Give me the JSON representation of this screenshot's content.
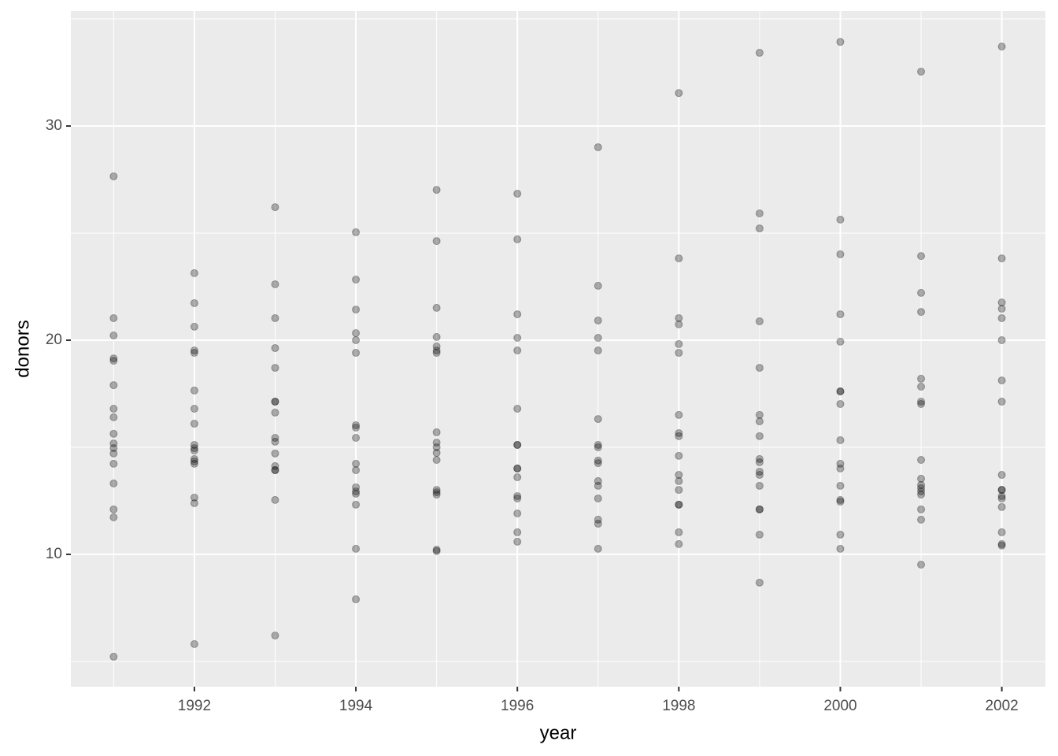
{
  "chart_data": {
    "type": "scatter",
    "x_label": "year",
    "y_label": "donors",
    "x": [
      1991,
      1991,
      1991,
      1991,
      1991,
      1991,
      1991,
      1991,
      1991,
      1991,
      1991,
      1991,
      1991,
      1991,
      1991,
      1991,
      1991,
      1992,
      1992,
      1992,
      1992,
      1992,
      1992,
      1992,
      1992,
      1992,
      1992,
      1992,
      1992,
      1992,
      1992,
      1992,
      1992,
      1992,
      1993,
      1993,
      1993,
      1993,
      1993,
      1993,
      1993,
      1993,
      1993,
      1993,
      1993,
      1993,
      1993,
      1993,
      1993,
      1993,
      1994,
      1994,
      1994,
      1994,
      1994,
      1994,
      1994,
      1994,
      1994,
      1994,
      1994,
      1994,
      1994,
      1994,
      1994,
      1994,
      1994,
      1995,
      1995,
      1995,
      1995,
      1995,
      1995,
      1995,
      1995,
      1995,
      1995,
      1995,
      1995,
      1995,
      1995,
      1995,
      1995,
      1995,
      1996,
      1996,
      1996,
      1996,
      1996,
      1996,
      1996,
      1996,
      1996,
      1996,
      1996,
      1996,
      1996,
      1996,
      1996,
      1996,
      1997,
      1997,
      1997,
      1997,
      1997,
      1997,
      1997,
      1997,
      1997,
      1997,
      1997,
      1997,
      1997,
      1997,
      1997,
      1997,
      1998,
      1998,
      1998,
      1998,
      1998,
      1998,
      1998,
      1998,
      1998,
      1998,
      1998,
      1998,
      1998,
      1998,
      1998,
      1998,
      1998,
      1999,
      1999,
      1999,
      1999,
      1999,
      1999,
      1999,
      1999,
      1999,
      1999,
      1999,
      1999,
      1999,
      1999,
      1999,
      1999,
      1999,
      2000,
      2000,
      2000,
      2000,
      2000,
      2000,
      2000,
      2000,
      2000,
      2000,
      2000,
      2000,
      2000,
      2000,
      2000,
      2000,
      2001,
      2001,
      2001,
      2001,
      2001,
      2001,
      2001,
      2001,
      2001,
      2001,
      2001,
      2001,
      2001,
      2001,
      2001,
      2001,
      2001,
      2002,
      2002,
      2002,
      2002,
      2002,
      2002,
      2002,
      2002,
      2002,
      2002,
      2002,
      2002,
      2002,
      2002,
      2002,
      2002,
      2002
    ],
    "values": [
      27.65,
      21.03,
      20.22,
      19.15,
      19.04,
      17.9,
      16.8,
      16.4,
      15.63,
      15.18,
      14.96,
      14.71,
      14.23,
      13.31,
      12.1,
      11.73,
      5.22,
      23.13,
      21.73,
      20.63,
      19.52,
      19.41,
      17.65,
      16.8,
      16.1,
      15.11,
      14.96,
      14.85,
      14.45,
      14.34,
      14.23,
      12.65,
      12.39,
      5.81,
      26.21,
      22.61,
      21.03,
      19.63,
      18.71,
      17.13,
      17.13,
      16.62,
      15.44,
      15.26,
      14.71,
      14.12,
      13.93,
      13.93,
      12.54,
      6.21,
      25.04,
      22.83,
      21.43,
      20.33,
      20.0,
      19.41,
      16.03,
      15.92,
      15.44,
      14.23,
      13.93,
      13.13,
      12.94,
      12.83,
      12.32,
      10.26,
      7.9,
      27.02,
      24.63,
      21.51,
      20.15,
      19.71,
      19.52,
      19.41,
      15.7,
      15.22,
      15.0,
      14.74,
      14.41,
      13.01,
      12.9,
      12.79,
      10.22,
      10.15,
      26.84,
      24.71,
      21.21,
      20.11,
      19.52,
      16.8,
      15.11,
      15.11,
      14.01,
      14.01,
      13.6,
      12.72,
      12.61,
      11.91,
      11.03,
      10.59,
      29.01,
      22.54,
      20.92,
      20.11,
      19.52,
      16.32,
      15.11,
      15.0,
      14.38,
      14.26,
      13.42,
      13.2,
      12.61,
      11.62,
      11.43,
      10.26,
      31.54,
      23.82,
      21.03,
      20.74,
      19.82,
      19.41,
      16.51,
      15.66,
      15.52,
      14.6,
      13.71,
      13.42,
      13.01,
      12.32,
      12.32,
      11.03,
      10.48,
      33.42,
      25.92,
      25.22,
      20.88,
      18.71,
      16.51,
      16.21,
      15.52,
      14.45,
      14.3,
      13.86,
      13.71,
      13.2,
      12.1,
      12.1,
      10.92,
      8.68,
      33.93,
      25.63,
      24.01,
      21.21,
      19.93,
      17.61,
      17.61,
      17.02,
      15.33,
      14.23,
      14.01,
      13.2,
      12.54,
      12.46,
      10.92,
      10.26,
      32.54,
      23.93,
      22.21,
      21.32,
      18.2,
      17.83,
      17.13,
      17.02,
      14.41,
      13.53,
      13.24,
      13.09,
      12.94,
      12.79,
      12.1,
      11.62,
      9.52,
      33.71,
      23.82,
      21.76,
      21.47,
      21.03,
      20.0,
      18.12,
      17.13,
      13.71,
      13.01,
      13.01,
      12.72,
      12.61,
      12.21,
      11.03,
      10.48,
      10.41
    ],
    "color": "#000000",
    "alpha": 0.3,
    "xlim": [
      1990.47,
      2002.54
    ],
    "xticks": [
      1992,
      1994,
      1996,
      1998,
      2000,
      2002
    ],
    "x_minor_ticks": [
      1991,
      1993,
      1995,
      1997,
      1999,
      2001
    ],
    "ylim": [
      3.82,
      35.37
    ],
    "yticks": [
      10,
      20,
      30
    ],
    "y_minor_ticks": [
      5,
      15,
      25,
      35
    ],
    "grid": true
  }
}
